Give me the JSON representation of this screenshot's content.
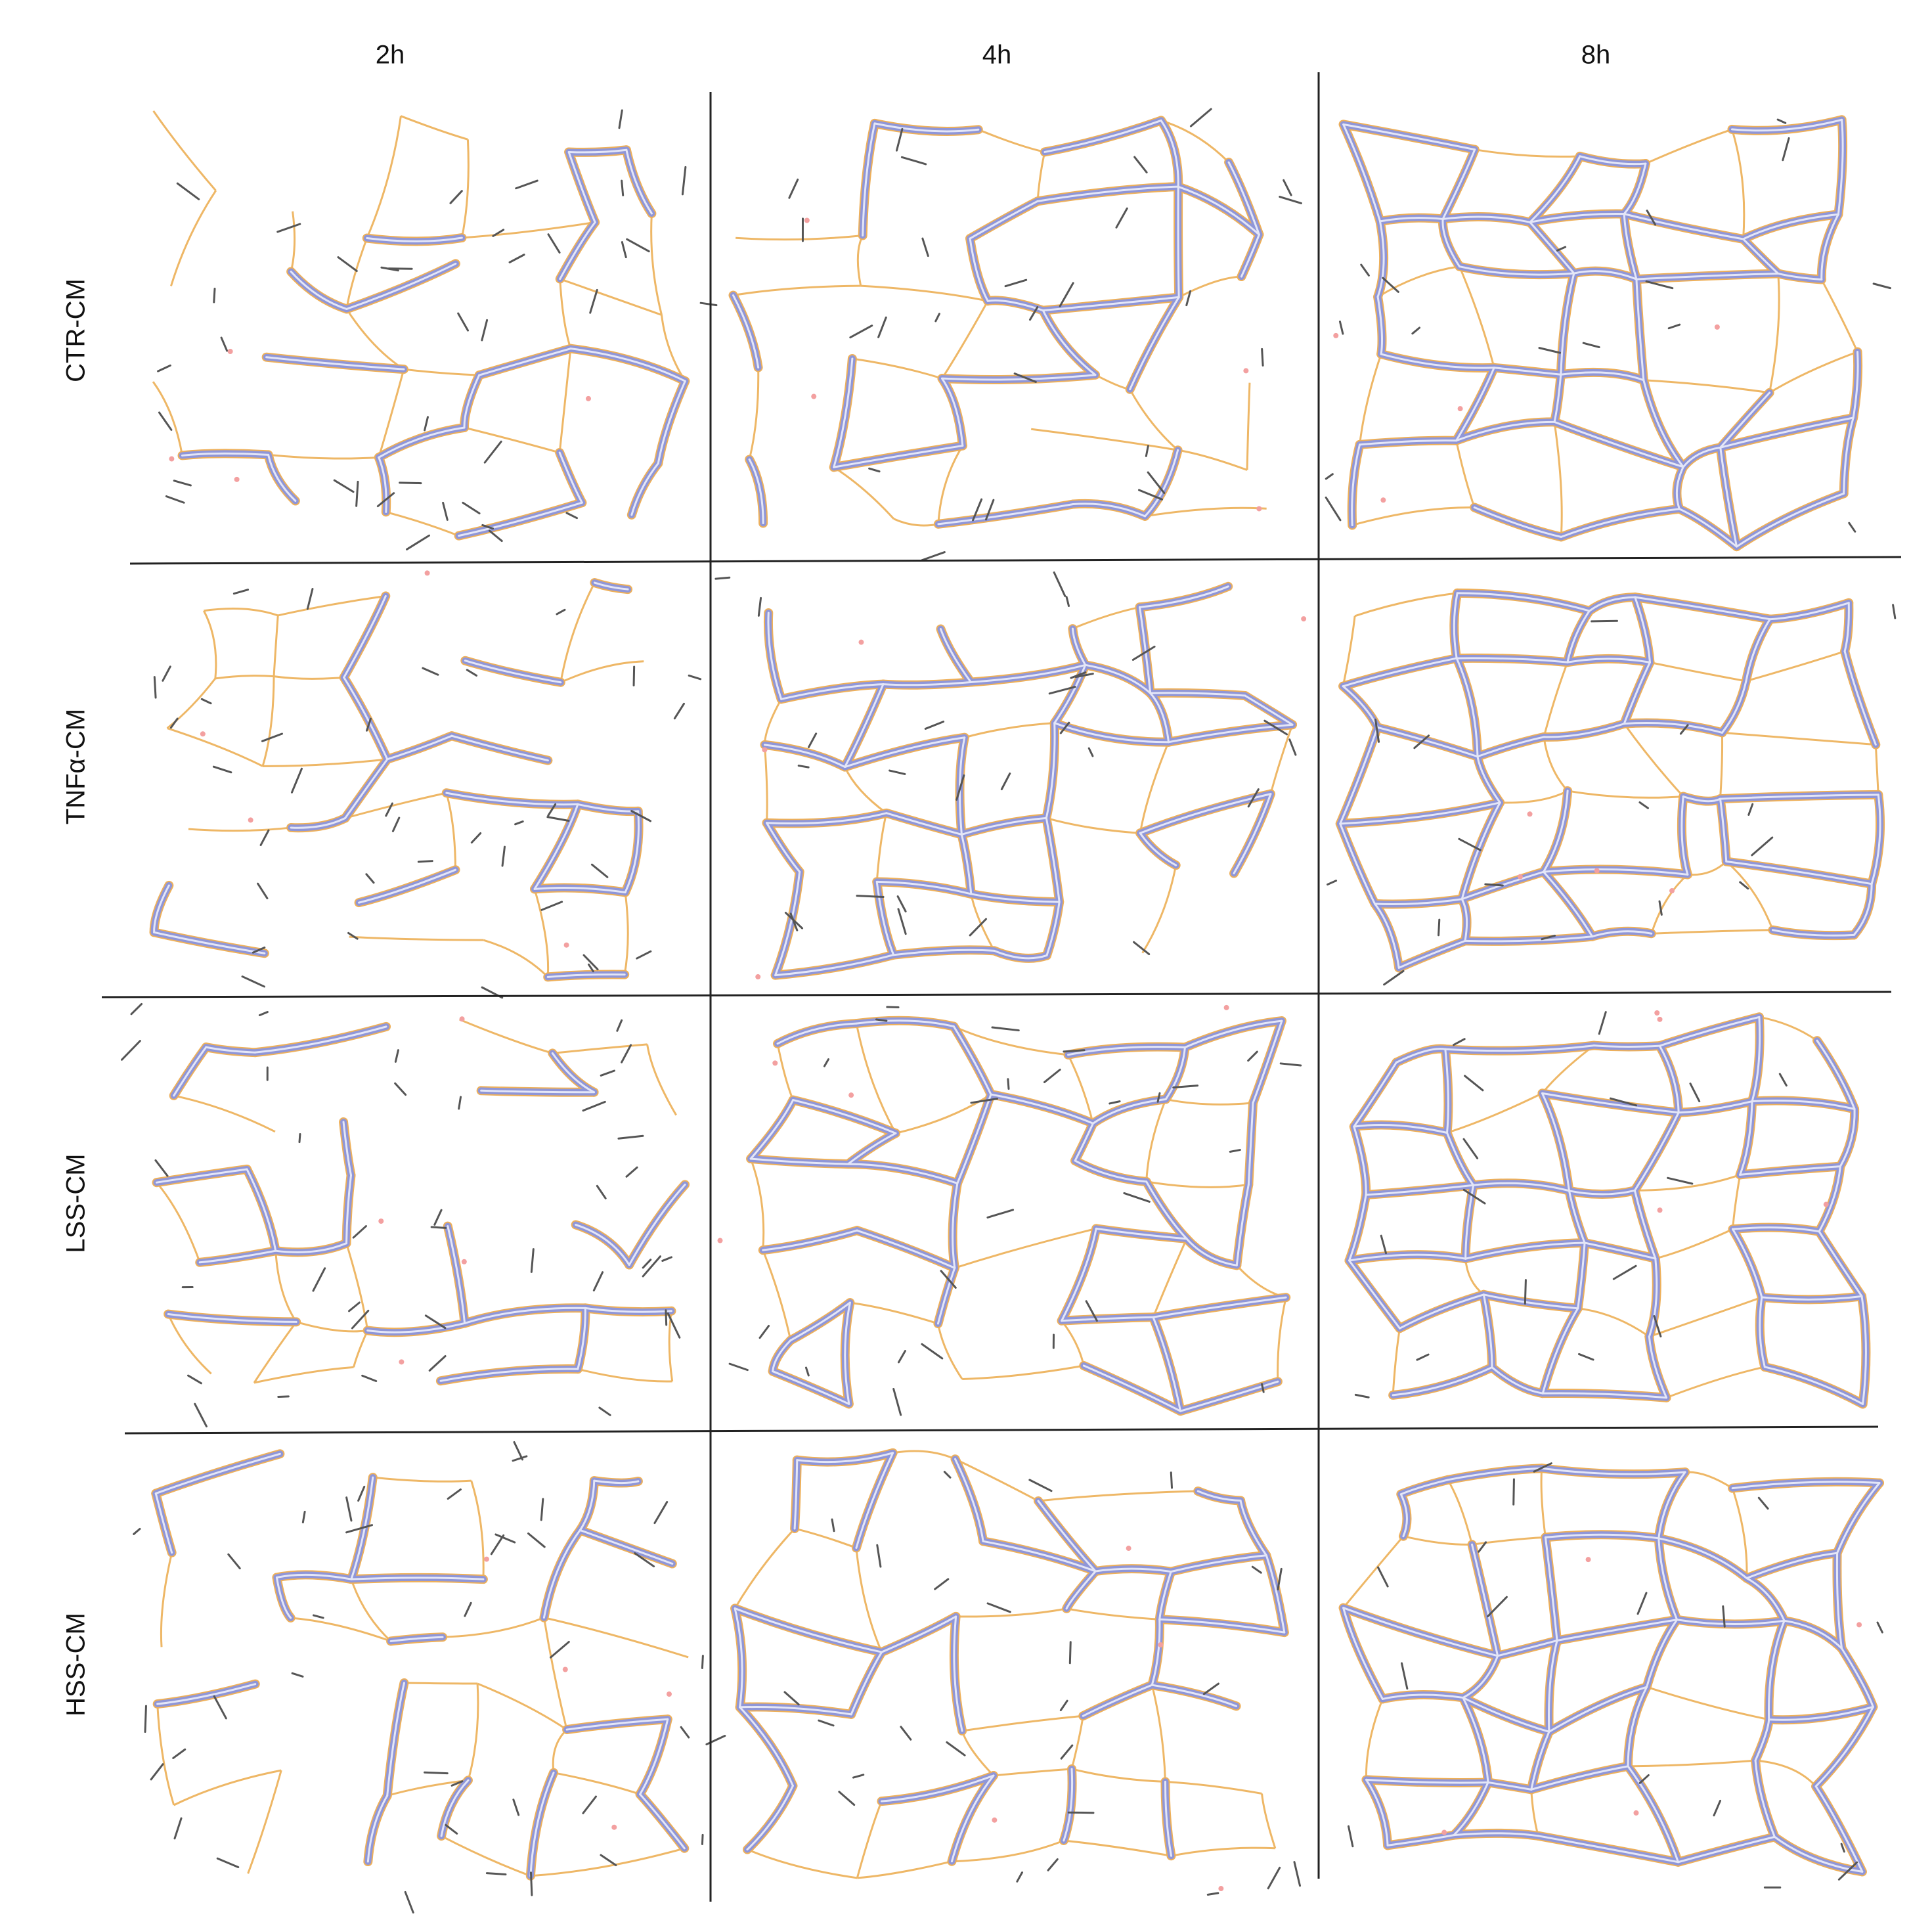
{
  "columns": [
    "2h",
    "4h",
    "8h"
  ],
  "rows": [
    "CTR-CM",
    "TNFα-CM",
    "LSS-CM",
    "HSS-CM"
  ]
}
